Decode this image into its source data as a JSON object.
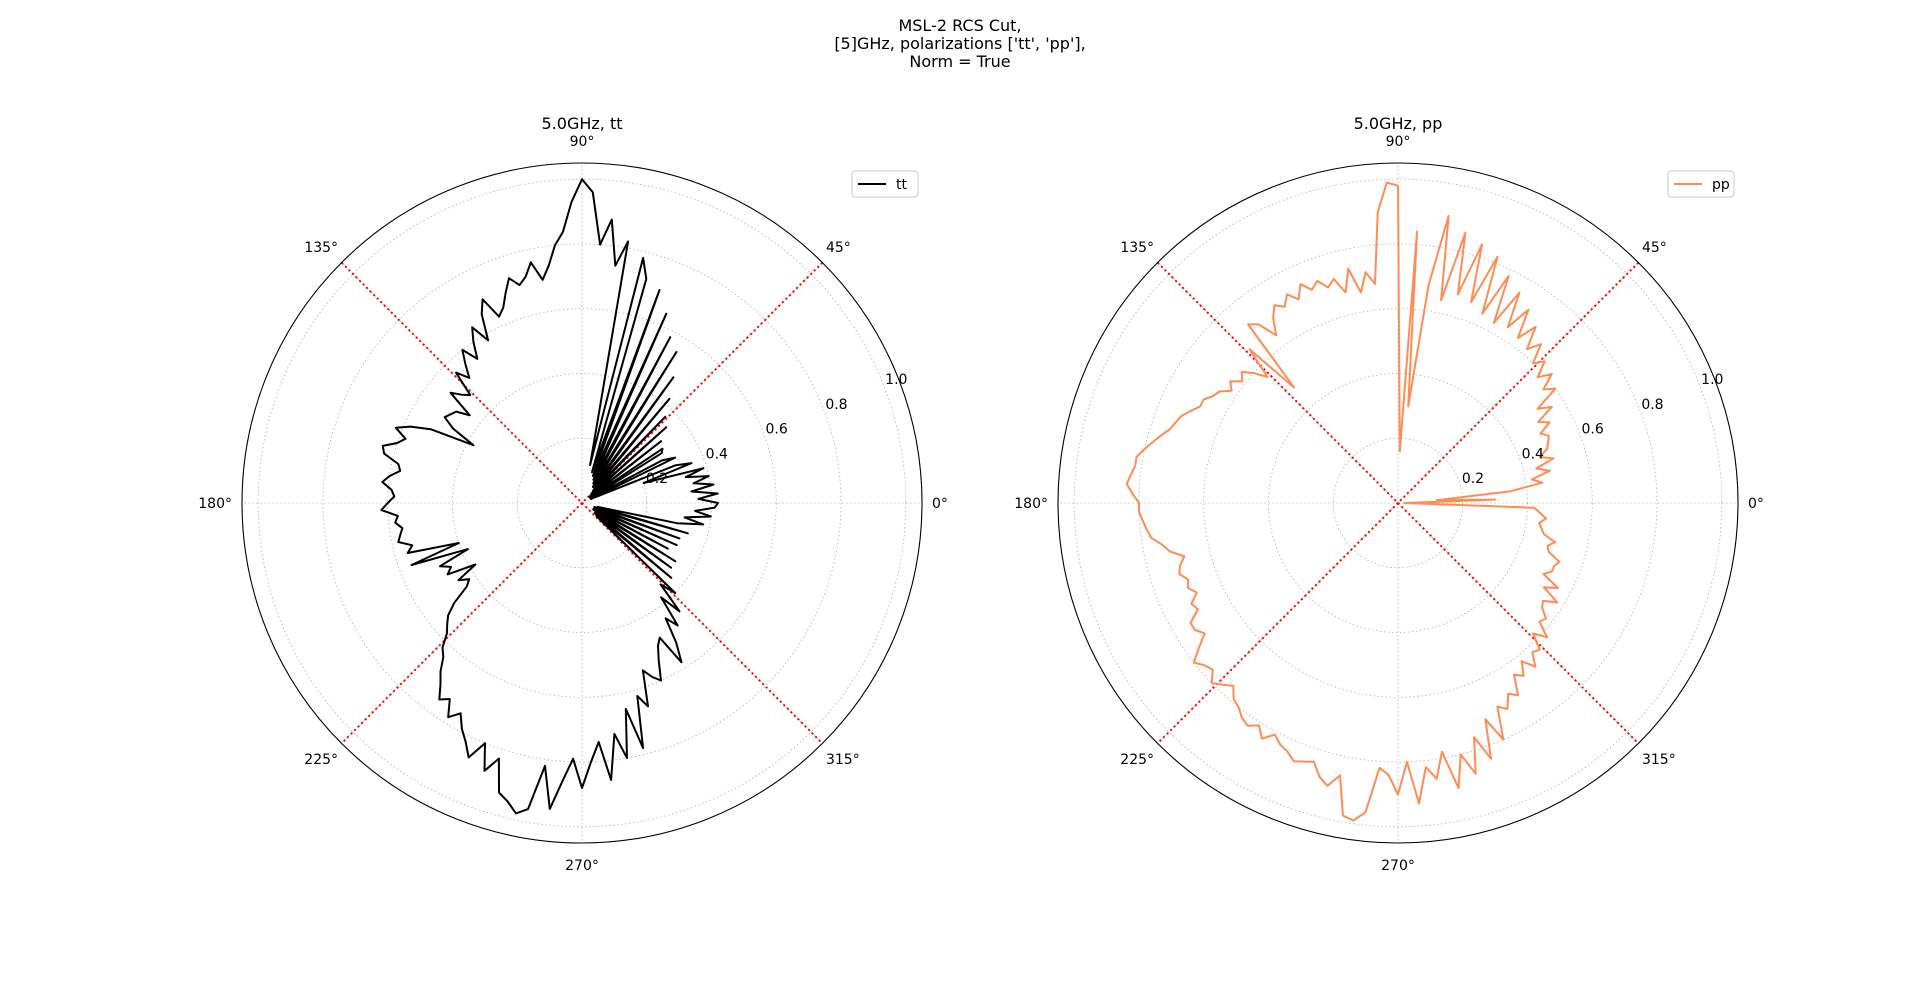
{
  "suptitle": {
    "line1": "MSL-2 RCS Cut,",
    "line2": "[5]GHz, polarizations ['tt', 'pp'],",
    "line3": "Norm = True"
  },
  "colors": {
    "tt": "#000000",
    "pp": "#ff8c55",
    "guides": "#ff0000",
    "grid": "#b0b0b0"
  },
  "chart_data": [
    {
      "type": "line",
      "projection": "polar",
      "title": "5.0GHz, tt",
      "theta_ticks": [
        0,
        45,
        90,
        135,
        180,
        225,
        270,
        315
      ],
      "theta_tick_labels": [
        "0°",
        "45°",
        "90°",
        "135°",
        "180°",
        "225°",
        "270°",
        "315°"
      ],
      "r_ticks": [
        0.2,
        0.4,
        0.6,
        0.8,
        1.0
      ],
      "r_tick_labels": [
        "0.2",
        "0.4",
        "0.6",
        "0.8",
        "1.0"
      ],
      "rlim": [
        0,
        1.05
      ],
      "grid": true,
      "legend": {
        "position": "upper-right",
        "entries": [
          "tt"
        ]
      },
      "guide_lines_deg": [
        45,
        135
      ],
      "series": [
        {
          "name": "tt",
          "theta": [
            0,
            2,
            4,
            6,
            8,
            10,
            12,
            14,
            16,
            18,
            20,
            22,
            24,
            26,
            28,
            30,
            32,
            34,
            36,
            38,
            40,
            42,
            44,
            46,
            48,
            50,
            52,
            54,
            56,
            58,
            60,
            62,
            64,
            66,
            68,
            70,
            72,
            74,
            76,
            78,
            80,
            82,
            84,
            86,
            88,
            90,
            92,
            94,
            96,
            98,
            100,
            102,
            104,
            106,
            108,
            110,
            112,
            114,
            116,
            118,
            120,
            122,
            124,
            126,
            128,
            130,
            132,
            134,
            136,
            138,
            140,
            142,
            144,
            146,
            148,
            150,
            152,
            154,
            156,
            158,
            160,
            162,
            164,
            166,
            168,
            170,
            172,
            174,
            176,
            178,
            180,
            182,
            184,
            186,
            188,
            190,
            192,
            194,
            196,
            198,
            200,
            202,
            204,
            206,
            208,
            210,
            212,
            214,
            216,
            218,
            220,
            222,
            224,
            226,
            228,
            230,
            232,
            234,
            236,
            238,
            240,
            242,
            244,
            246,
            248,
            250,
            252,
            254,
            256,
            258,
            260,
            262,
            264,
            266,
            268,
            270,
            272,
            274,
            276,
            278,
            280,
            282,
            284,
            286,
            288,
            290,
            292,
            294,
            296,
            298,
            300,
            302,
            304,
            306,
            308,
            310,
            312,
            314,
            316,
            318,
            320,
            322,
            324,
            326,
            328,
            330,
            332,
            334,
            336,
            338,
            340,
            342,
            344,
            346,
            348,
            350,
            352,
            354,
            356,
            358
          ],
          "r": [
            0.42,
            0.36,
            0.42,
            0.34,
            0.41,
            0.35,
            0.4,
            0.33,
            0.39,
            0.2,
            0.36,
            0.31,
            0.03,
            0.32,
            0.28,
            0.03,
            0.29,
            0.3,
            0.03,
            0.31,
            0.03,
            0.35,
            0.04,
            0.37,
            0.05,
            0.42,
            0.06,
            0.48,
            0.06,
            0.55,
            0.07,
            0.58,
            0.08,
            0.64,
            0.09,
            0.7,
            0.1,
            0.72,
            0.78,
            0.12,
            0.82,
            0.74,
            0.88,
            0.8,
            0.96,
            1.0,
            0.93,
            0.84,
            0.8,
            0.74,
            0.7,
            0.76,
            0.72,
            0.7,
            0.73,
            0.69,
            0.65,
            0.63,
            0.7,
            0.66,
            0.58,
            0.64,
            0.6,
            0.55,
            0.6,
            0.56,
            0.52,
            0.56,
            0.48,
            0.5,
            0.53,
            0.44,
            0.48,
            0.49,
            0.5,
            0.46,
            0.38,
            0.52,
            0.58,
            0.62,
            0.58,
            0.6,
            0.64,
            0.63,
            0.58,
            0.57,
            0.6,
            0.62,
            0.59,
            0.58,
            0.6,
            0.62,
            0.57,
            0.58,
            0.56,
            0.57,
            0.58,
            0.54,
            0.56,
            0.4,
            0.56,
            0.38,
            0.48,
            0.45,
            0.47,
            0.38,
            0.45,
            0.42,
            0.44,
            0.5,
            0.54,
            0.56,
            0.58,
            0.62,
            0.64,
            0.68,
            0.71,
            0.75,
            0.73,
            0.78,
            0.75,
            0.79,
            0.82,
            0.86,
            0.8,
            0.88,
            0.83,
            0.93,
            0.95,
            0.98,
            0.96,
            0.82,
            0.95,
            0.86,
            0.79,
            0.88,
            0.8,
            0.74,
            0.86,
            0.72,
            0.8,
            0.65,
            0.78,
            0.62,
            0.66,
            0.55,
            0.58,
            0.6,
            0.54,
            0.5,
            0.48,
            0.58,
            0.52,
            0.44,
            0.48,
            0.38,
            0.45,
            0.35,
            0.4,
            0.06,
            0.36,
            0.05,
            0.34,
            0.05,
            0.34,
            0.04,
            0.3,
            0.04,
            0.32,
            0.04,
            0.32,
            0.04,
            0.34,
            0.05,
            0.3,
            0.38,
            0.32,
            0.4,
            0.35,
            0.41,
            0.36,
            0.43,
            0.37,
            0.42
          ]
        }
      ]
    },
    {
      "type": "line",
      "projection": "polar",
      "title": "5.0GHz, pp",
      "theta_ticks": [
        0,
        45,
        90,
        135,
        180,
        225,
        270,
        315
      ],
      "theta_tick_labels": [
        "0°",
        "45°",
        "90°",
        "135°",
        "180°",
        "225°",
        "270°",
        "315°"
      ],
      "r_ticks": [
        0.2,
        0.4,
        0.6,
        0.8,
        1.0
      ],
      "r_tick_labels": [
        "0.2",
        "0.4",
        "0.6",
        "0.8",
        "1.0"
      ],
      "rlim": [
        0,
        1.05
      ],
      "grid": true,
      "legend": {
        "position": "upper-right",
        "entries": [
          "pp"
        ]
      },
      "guide_lines_deg": [
        45,
        135
      ],
      "series": [
        {
          "name": "pp",
          "theta": [
            0,
            2,
            4,
            6,
            8,
            10,
            12,
            14,
            16,
            18,
            20,
            22,
            24,
            26,
            28,
            30,
            32,
            34,
            36,
            38,
            40,
            42,
            44,
            46,
            48,
            50,
            52,
            54,
            56,
            58,
            60,
            62,
            64,
            66,
            68,
            70,
            72,
            74,
            76,
            78,
            80,
            82,
            84,
            86,
            88,
            90,
            92,
            94,
            96,
            98,
            100,
            102,
            104,
            106,
            108,
            110,
            112,
            114,
            116,
            118,
            120,
            122,
            124,
            126,
            128,
            130,
            132,
            134,
            136,
            138,
            140,
            142,
            144,
            146,
            148,
            150,
            152,
            154,
            156,
            158,
            160,
            162,
            164,
            166,
            168,
            170,
            172,
            174,
            176,
            178,
            180,
            182,
            184,
            186,
            188,
            190,
            192,
            194,
            196,
            198,
            200,
            202,
            204,
            206,
            208,
            210,
            212,
            214,
            216,
            218,
            220,
            222,
            224,
            226,
            228,
            230,
            232,
            234,
            236,
            238,
            240,
            242,
            244,
            246,
            248,
            250,
            252,
            254,
            256,
            258,
            260,
            262,
            264,
            266,
            268,
            270,
            272,
            274,
            276,
            278,
            280,
            282,
            284,
            286,
            288,
            290,
            292,
            294,
            296,
            298,
            300,
            302,
            304,
            306,
            308,
            310,
            312,
            314,
            316,
            318,
            320,
            322,
            324,
            326,
            328,
            330,
            332,
            334,
            336,
            338,
            340,
            342,
            344,
            346,
            348,
            350,
            352,
            354,
            356,
            358
          ],
          "r": [
            0.02,
            0.3,
            0.12,
            0.35,
            0.45,
            0.42,
            0.48,
            0.44,
            0.5,
            0.46,
            0.49,
            0.5,
            0.51,
            0.49,
            0.53,
            0.5,
            0.56,
            0.52,
            0.6,
            0.57,
            0.62,
            0.58,
            0.63,
            0.6,
            0.66,
            0.62,
            0.69,
            0.63,
            0.72,
            0.64,
            0.75,
            0.63,
            0.78,
            0.64,
            0.82,
            0.66,
            0.84,
            0.67,
            0.86,
            0.64,
            0.9,
            0.68,
            0.3,
            0.84,
            0.16,
            0.98,
            0.99,
            0.9,
            0.68,
            0.72,
            0.66,
            0.74,
            0.67,
            0.72,
            0.7,
            0.73,
            0.71,
            0.74,
            0.7,
            0.73,
            0.7,
            0.72,
            0.69,
            0.64,
            0.7,
            0.72,
            0.48,
            0.66,
            0.56,
            0.6,
            0.63,
            0.61,
            0.64,
            0.62,
            0.65,
            0.66,
            0.68,
            0.68,
            0.7,
            0.72,
            0.73,
            0.74,
            0.76,
            0.78,
            0.8,
            0.82,
            0.82,
            0.83,
            0.84,
            0.82,
            0.8,
            0.8,
            0.79,
            0.78,
            0.77,
            0.74,
            0.72,
            0.68,
            0.7,
            0.71,
            0.69,
            0.7,
            0.68,
            0.71,
            0.7,
            0.74,
            0.74,
            0.72,
            0.76,
            0.8,
            0.78,
            0.77,
            0.8,
            0.78,
            0.76,
            0.79,
            0.8,
            0.82,
            0.83,
            0.81,
            0.84,
            0.81,
            0.83,
            0.84,
            0.86,
            0.85,
            0.84,
            0.88,
            0.9,
            0.86,
            0.98,
            0.99,
            0.96,
            0.82,
            0.84,
            0.9,
            0.8,
            0.93,
            0.82,
            0.86,
            0.78,
            0.9,
            0.8,
            0.87,
            0.76,
            0.84,
            0.72,
            0.8,
            0.7,
            0.72,
            0.68,
            0.7,
            0.64,
            0.66,
            0.62,
            0.66,
            0.62,
            0.63,
            0.58,
            0.62,
            0.57,
            0.58,
            0.55,
            0.54,
            0.58,
            0.52,
            0.56,
            0.5,
            0.52,
            0.52,
            0.53,
            0.49,
            0.48,
            0.5,
            0.46,
            0.45,
            0.44,
            0.46,
            0.44,
            0.42,
            0.4,
            0.36,
            0.26,
            0.34,
            0.2,
            0.02
          ]
        }
      ]
    }
  ]
}
